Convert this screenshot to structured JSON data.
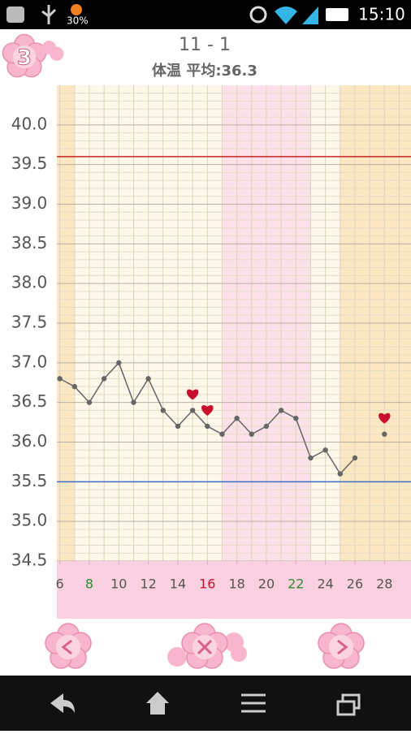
{
  "status_bar": {
    "battery": "30%",
    "time": "15:10"
  },
  "badge": "3",
  "chart_data": {
    "type": "line",
    "title": "11 - 1",
    "subtitle": "体温 平均:36.3",
    "x": [
      6,
      7,
      8,
      9,
      10,
      11,
      12,
      13,
      14,
      15,
      16,
      17,
      18,
      19,
      20,
      21,
      22,
      23,
      24,
      25,
      26,
      27,
      28
    ],
    "series": [
      {
        "color": "#666666",
        "values": [
          36.8,
          36.7,
          36.5,
          36.8,
          37.0,
          36.5,
          36.8,
          36.4,
          36.2,
          36.4,
          36.2,
          36.1,
          36.3,
          36.1,
          36.2,
          36.4,
          36.3,
          35.8,
          35.9,
          35.6,
          35.8,
          null,
          36.1
        ]
      }
    ],
    "heart_days": [
      15,
      16,
      28
    ],
    "heart_color": "#c8102e",
    "xlim": [
      5.8,
      29.8
    ],
    "xticks": [
      6,
      8,
      10,
      12,
      14,
      16,
      18,
      20,
      22,
      24,
      26,
      28
    ],
    "xtick_colors": [
      "#555555",
      "#2e8b2e",
      "#555555",
      "#555555",
      "#555555",
      "#c8102e",
      "#555555",
      "#555555",
      "#2e8b2e",
      "#555555",
      "#555555",
      "#555555"
    ],
    "ylim": [
      34.5,
      40.5
    ],
    "yticks": [
      34.5,
      {
        "value": 35.0,
        "label": "35.0"
      },
      35.5,
      {
        "value": 36.0,
        "label": "36.0"
      },
      36.5,
      {
        "value": 37.0,
        "label": "37.0"
      },
      37.5,
      {
        "value": 38.0,
        "label": "38.0"
      },
      38.5,
      {
        "value": 39.0,
        "label": "39.0"
      },
      39.5,
      {
        "value": 40.0,
        "label": "40.0"
      }
    ],
    "reference_lines": [
      {
        "value": 39.6,
        "color": "#cc2222"
      },
      {
        "value": 35.5,
        "color": "#3a6fc4"
      }
    ],
    "bands": [
      {
        "from": 5.8,
        "to": 7,
        "color": "#fbe7c2"
      },
      {
        "from": 17,
        "to": 23,
        "color": "#fce1ea"
      },
      {
        "from": 25,
        "to": 29.8,
        "color": "#fbe7c2"
      }
    ],
    "grid": true
  }
}
